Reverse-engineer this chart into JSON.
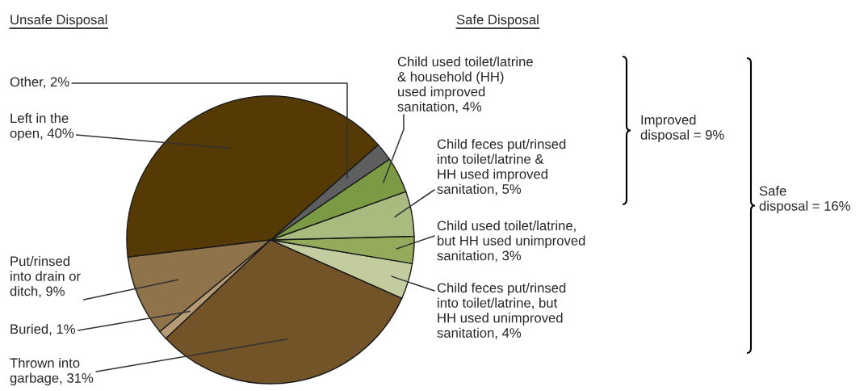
{
  "chart_data": {
    "type": "pie",
    "categories": [
      "Child feces put/rinsed\ninto toilet/latrine, but\nHH used unimproved\nsanitation, 4%",
      "Child used toilet/latrine,\nbut HH used unimproved\nsanitation, 3%",
      "Child feces put/rinsed\ninto toilet/latrine &\nHH used improved\nsanitation, 5%",
      "Child used toilet/latrine\n& household (HH)\nused improved\nsanitation, 4%",
      "Other, 2%",
      "Left in the\nopen, 40%",
      "Put/rinsed\ninto drain or\nditch, 9%",
      "Buried, 1%",
      "Thrown into\ngarbage, 31%"
    ],
    "values": [
      4,
      3,
      5,
      4,
      2,
      40,
      9,
      1,
      31
    ],
    "colors": [
      "#c2cc9e",
      "#93ab5a",
      "#a9bb7f",
      "#7a9b43",
      "#5d5f61",
      "#553a05",
      "#8e734b",
      "#b59c77",
      "#735328"
    ],
    "annotations": [
      "Unsafe Disposal",
      "Safe Disposal",
      "Improved\ndisposal = 9%",
      "Safe\ndisposal = 16%"
    ]
  }
}
